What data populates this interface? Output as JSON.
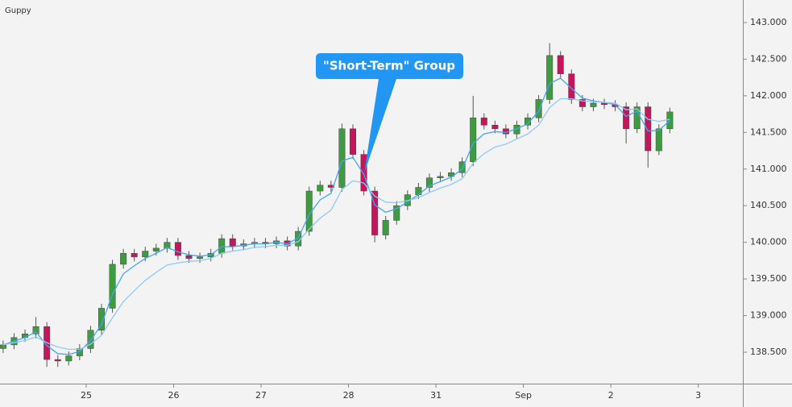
{
  "chart_data": {
    "type": "candlestick",
    "title": "Guppy",
    "annotation": "\"Short-Term\" Group",
    "x": [
      -0.95,
      -0.825,
      -0.7,
      -0.575,
      -0.45,
      -0.325,
      -0.2,
      -0.075,
      0.05,
      0.175,
      0.3,
      0.425,
      0.55,
      0.675,
      0.8,
      0.925,
      1.05,
      1.175,
      1.3,
      1.425,
      1.55,
      1.675,
      1.8,
      1.925,
      2.05,
      2.175,
      2.3,
      2.425,
      2.55,
      2.675,
      2.8,
      2.925,
      3.05,
      3.175,
      3.3,
      3.425,
      3.55,
      3.675,
      3.8,
      3.925,
      4.05,
      4.175,
      4.3,
      4.425,
      4.55,
      4.675,
      4.8,
      4.925,
      5.05,
      5.175,
      5.3,
      5.425,
      5.55,
      5.675,
      5.8,
      5.925,
      6.05,
      6.175,
      6.3,
      6.425,
      6.55,
      6.675
    ],
    "open": [
      138.55,
      138.6,
      138.7,
      138.75,
      138.85,
      138.4,
      138.38,
      138.45,
      138.55,
      138.8,
      139.1,
      139.7,
      139.85,
      139.8,
      139.88,
      139.92,
      140.0,
      139.82,
      139.78,
      139.8,
      139.85,
      140.05,
      139.95,
      139.98,
      140.0,
      139.98,
      140.02,
      139.95,
      140.15,
      140.7,
      140.78,
      140.75,
      141.55,
      141.2,
      140.7,
      140.1,
      140.3,
      140.5,
      140.65,
      140.75,
      140.88,
      140.9,
      140.95,
      141.1,
      141.7,
      141.6,
      141.55,
      141.48,
      141.6,
      141.7,
      141.95,
      142.55,
      142.3,
      141.95,
      141.85,
      141.9,
      141.88,
      141.85,
      141.55,
      141.85,
      141.25,
      141.55
    ],
    "high": [
      138.66,
      138.76,
      138.81,
      138.98,
      138.91,
      138.46,
      138.51,
      138.61,
      138.86,
      139.16,
      139.76,
      139.91,
      139.91,
      139.94,
      139.98,
      140.06,
      140.06,
      139.88,
      139.86,
      139.91,
      140.11,
      140.11,
      140.04,
      140.06,
      140.06,
      140.08,
      140.08,
      140.21,
      140.76,
      140.84,
      140.84,
      141.62,
      141.61,
      141.26,
      140.76,
      140.36,
      140.56,
      140.71,
      140.81,
      140.94,
      140.96,
      141.01,
      141.16,
      142.0,
      141.76,
      141.66,
      141.61,
      141.66,
      141.76,
      142.01,
      142.72,
      142.61,
      142.36,
      142.01,
      141.96,
      141.96,
      141.94,
      141.91,
      141.91,
      141.91,
      141.61,
      141.84
    ],
    "low": [
      138.49,
      138.54,
      138.64,
      138.69,
      138.3,
      138.3,
      138.32,
      138.39,
      138.49,
      138.74,
      139.04,
      139.64,
      139.74,
      139.74,
      139.82,
      139.86,
      139.76,
      139.72,
      139.72,
      139.74,
      139.79,
      139.89,
      139.89,
      139.92,
      139.92,
      139.92,
      139.89,
      139.89,
      140.09,
      140.64,
      140.69,
      140.69,
      141.14,
      140.64,
      140.0,
      140.04,
      140.24,
      140.44,
      140.59,
      140.69,
      140.82,
      140.84,
      140.89,
      141.04,
      141.54,
      141.49,
      141.42,
      141.42,
      141.54,
      141.64,
      141.89,
      142.24,
      141.89,
      141.79,
      141.79,
      141.82,
      141.79,
      141.35,
      141.49,
      141.02,
      141.19,
      141.49
    ],
    "close": [
      138.6,
      138.7,
      138.75,
      138.85,
      138.4,
      138.38,
      138.45,
      138.55,
      138.8,
      139.1,
      139.7,
      139.85,
      139.8,
      139.88,
      139.92,
      140.0,
      139.82,
      139.78,
      139.8,
      139.85,
      140.05,
      139.95,
      139.98,
      140.0,
      139.98,
      140.02,
      139.95,
      140.15,
      140.7,
      140.78,
      140.75,
      141.55,
      141.2,
      140.7,
      140.1,
      140.3,
      140.5,
      140.65,
      140.75,
      140.88,
      140.9,
      140.95,
      141.1,
      141.7,
      141.6,
      141.55,
      141.48,
      141.6,
      141.7,
      141.95,
      142.55,
      142.3,
      141.95,
      141.85,
      141.9,
      141.88,
      141.85,
      141.55,
      141.85,
      141.25,
      141.55,
      141.78
    ],
    "up_color": "#3f9b3f",
    "down_color": "#c2185b",
    "ma_lines": [
      {
        "color": "#42a5f5",
        "values": [
          138.6,
          138.65,
          138.7,
          138.78,
          138.59,
          138.48,
          138.47,
          138.51,
          138.66,
          138.88,
          139.29,
          139.57,
          139.68,
          139.78,
          139.85,
          139.93,
          139.87,
          139.83,
          139.81,
          139.83,
          139.94,
          139.94,
          139.96,
          139.98,
          139.98,
          140.0,
          139.98,
          140.06,
          140.38,
          140.58,
          140.67,
          141.11,
          141.16,
          140.93,
          140.51,
          140.41,
          140.46,
          140.55,
          140.65,
          140.77,
          140.83,
          140.89,
          141.0,
          141.35,
          141.48,
          141.51,
          141.5,
          141.55,
          141.62,
          141.79,
          142.17,
          142.24,
          142.1,
          141.97,
          141.93,
          141.91,
          141.88,
          141.72,
          141.79,
          141.52,
          141.53,
          141.66
        ]
      },
      {
        "color": "#90caf9",
        "values": [
          138.6,
          138.63,
          138.66,
          138.71,
          138.63,
          138.57,
          138.54,
          138.54,
          138.61,
          138.73,
          138.97,
          139.19,
          139.34,
          139.48,
          139.59,
          139.69,
          139.72,
          139.74,
          139.75,
          139.78,
          139.85,
          139.88,
          139.9,
          139.93,
          139.94,
          139.96,
          139.96,
          140.01,
          140.18,
          140.33,
          140.44,
          140.72,
          140.84,
          140.81,
          140.63,
          140.55,
          140.54,
          140.57,
          140.61,
          140.68,
          140.74,
          140.79,
          140.87,
          141.08,
          141.21,
          141.3,
          141.34,
          141.41,
          141.48,
          141.6,
          141.84,
          141.96,
          141.96,
          141.93,
          141.92,
          141.91,
          141.9,
          141.81,
          141.82,
          141.68,
          141.65,
          141.68
        ]
      }
    ],
    "xlim": [
      -0.986,
      7.51
    ],
    "xticks": [
      {
        "value": 0,
        "label": "25"
      },
      {
        "value": 1,
        "label": "26"
      },
      {
        "value": 2,
        "label": "27"
      },
      {
        "value": 3,
        "label": "28"
      },
      {
        "value": 4,
        "label": "31"
      },
      {
        "value": 5,
        "label": "Sep"
      },
      {
        "value": 6,
        "label": "2"
      },
      {
        "value": 7,
        "label": "3"
      }
    ],
    "ylim": [
      138.071,
      143.308
    ],
    "yticks": [
      {
        "value": 138.5,
        "label": "138.500"
      },
      {
        "value": 139,
        "label": "139.000"
      },
      {
        "value": 139.5,
        "label": "139.500"
      },
      {
        "value": 140,
        "label": "140.000"
      },
      {
        "value": 140.5,
        "label": "140.500"
      },
      {
        "value": 141,
        "label": "141.000"
      },
      {
        "value": 141.5,
        "label": "141.500"
      },
      {
        "value": 142,
        "label": "142.000"
      },
      {
        "value": 142.5,
        "label": "142.500"
      },
      {
        "value": 143,
        "label": "143.000"
      }
    ]
  }
}
